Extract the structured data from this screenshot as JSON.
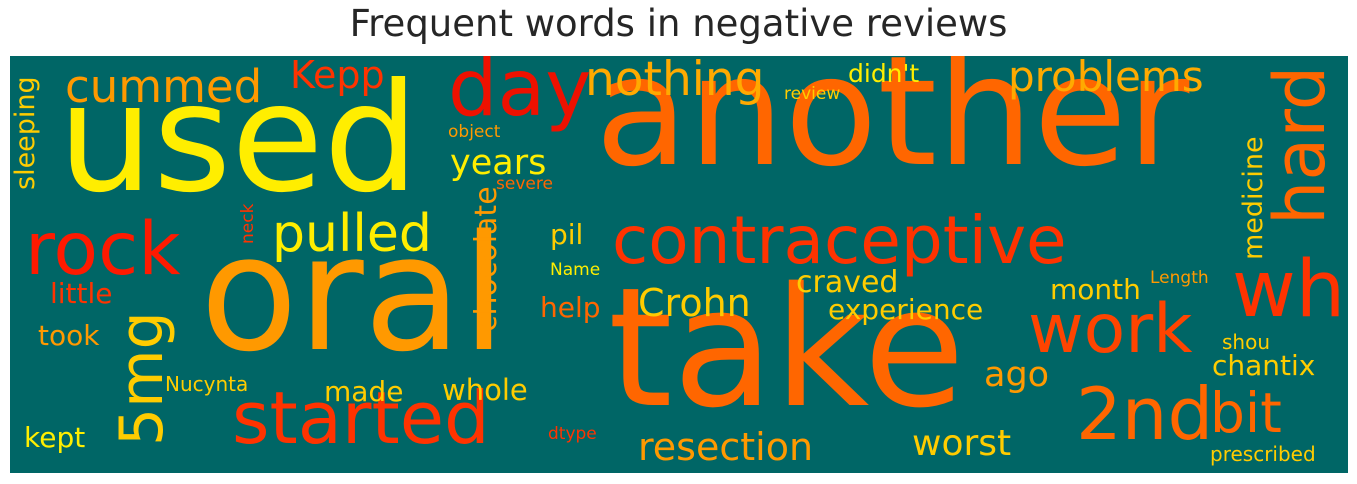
{
  "title": "Frequent words in negative reviews",
  "colors": {
    "background": "#006666",
    "title": "#262626"
  },
  "chart_data": {
    "type": "wordcloud",
    "title": "Frequent words in negative reviews",
    "words": [
      {
        "text": "another",
        "color": "#ff6600"
      },
      {
        "text": "oral",
        "color": "#ff9900"
      },
      {
        "text": "used",
        "color": "#ffee00"
      },
      {
        "text": "take",
        "color": "#ff6600"
      },
      {
        "text": "contraceptive",
        "color": "#ff3300"
      },
      {
        "text": "started",
        "color": "#ff3300"
      },
      {
        "text": "rock",
        "color": "#ff1a00"
      },
      {
        "text": "day",
        "color": "#ee1100"
      },
      {
        "text": "hard",
        "color": "#ff6600"
      },
      {
        "text": "wh",
        "color": "#ff3300"
      },
      {
        "text": "work",
        "color": "#ff4400"
      },
      {
        "text": "2nd",
        "color": "#ff6600"
      },
      {
        "text": "5mg",
        "color": "#ffcc00"
      },
      {
        "text": "bit",
        "color": "#ff6600"
      },
      {
        "text": "pulled",
        "color": "#ffee00"
      },
      {
        "text": "nothing",
        "color": "#ffaa00"
      },
      {
        "text": "problems",
        "color": "#ffaa00"
      },
      {
        "text": "cummed",
        "color": "#ff9900"
      },
      {
        "text": "Kepp",
        "color": "#ff3300"
      },
      {
        "text": "resection",
        "color": "#ff9900"
      },
      {
        "text": "Crohn",
        "color": "#ffcc00"
      },
      {
        "text": "worst",
        "color": "#ffcc00"
      },
      {
        "text": "years",
        "color": "#ffee00"
      },
      {
        "text": "ago",
        "color": "#ff9900"
      },
      {
        "text": "chocolate",
        "color": "#ff9900"
      },
      {
        "text": "sleeping",
        "color": "#ffcc00"
      },
      {
        "text": "medicine",
        "color": "#ffcc00"
      },
      {
        "text": "experience",
        "color": "#ffcc00"
      },
      {
        "text": "whole",
        "color": "#ffcc00"
      },
      {
        "text": "craved",
        "color": "#ffcc00"
      },
      {
        "text": "month",
        "color": "#ffcc00"
      },
      {
        "text": "chantix",
        "color": "#ffcc00"
      },
      {
        "text": "made",
        "color": "#ffcc00"
      },
      {
        "text": "little",
        "color": "#ff3300"
      },
      {
        "text": "took",
        "color": "#ff9900"
      },
      {
        "text": "help",
        "color": "#ff6600"
      },
      {
        "text": "kept",
        "color": "#ffee00"
      },
      {
        "text": "pil",
        "color": "#ffcc00"
      },
      {
        "text": "didn't",
        "color": "#ffee00"
      },
      {
        "text": "shou",
        "color": "#ffcc00"
      },
      {
        "text": "Nucynta",
        "color": "#ffcc00"
      },
      {
        "text": "prescribed",
        "color": "#ffcc00"
      },
      {
        "text": "Length",
        "color": "#ff9900"
      },
      {
        "text": "review",
        "color": "#ffcc00"
      },
      {
        "text": "object",
        "color": "#ff9900"
      },
      {
        "text": "severe",
        "color": "#ff6600"
      },
      {
        "text": "neck",
        "color": "#ff3300"
      },
      {
        "text": "Name",
        "color": "#ffee00"
      },
      {
        "text": "dtype",
        "color": "#ff3300"
      }
    ]
  }
}
